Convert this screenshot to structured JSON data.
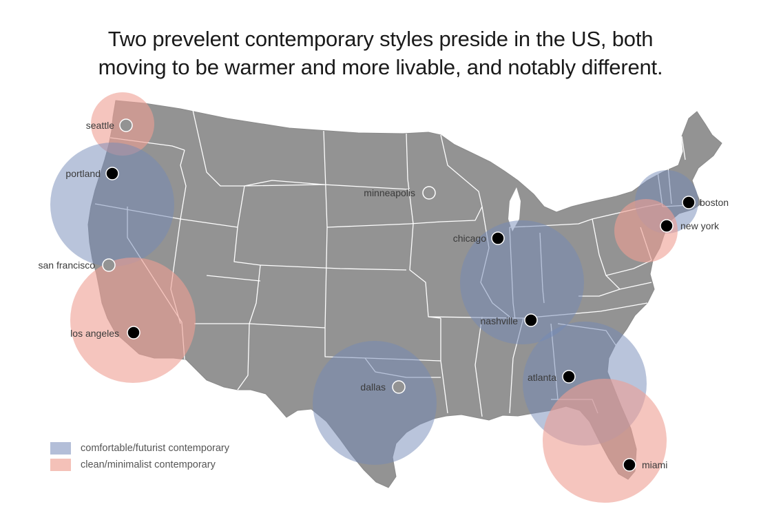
{
  "title": {
    "line1": "Two prevelent contemporary styles preside in the US, both",
    "line2": "moving to be warmer and more livable, and notably different."
  },
  "colors": {
    "map_fill": "#939393",
    "state_border": "#ffffff",
    "blue": "#7489b8",
    "pink": "#ee9f92",
    "filled_dot": "#000000",
    "hollow_dot": "#939393"
  },
  "cities": [
    {
      "label": "seattle",
      "marker": "hollow"
    },
    {
      "label": "portland",
      "marker": "filled"
    },
    {
      "label": "san francisco",
      "marker": "hollow"
    },
    {
      "label": "los angeles",
      "marker": "filled"
    },
    {
      "label": "minneapolis",
      "marker": "hollow"
    },
    {
      "label": "chicago",
      "marker": "filled"
    },
    {
      "label": "nashville",
      "marker": "filled"
    },
    {
      "label": "dallas",
      "marker": "hollow"
    },
    {
      "label": "atlanta",
      "marker": "filled"
    },
    {
      "label": "miami",
      "marker": "filled"
    },
    {
      "label": "boston",
      "marker": "filled"
    },
    {
      "label": "new york",
      "marker": "filled"
    }
  ],
  "legend": [
    {
      "label": "comfortable/futurist contemporary",
      "color": "#7489b8"
    },
    {
      "label": "clean/minimalist contemporary",
      "color": "#ee9f92"
    }
  ]
}
